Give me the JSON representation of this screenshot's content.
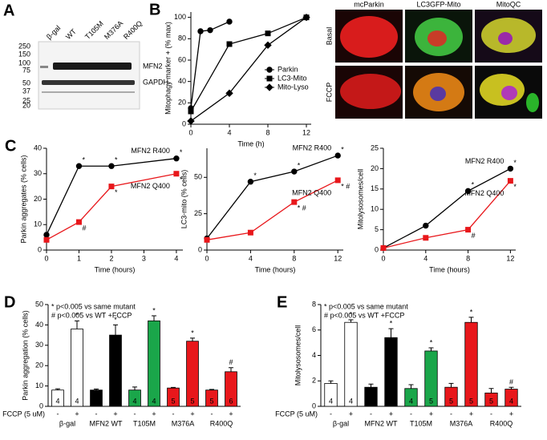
{
  "blot": {
    "panel": "A",
    "lanes": [
      "β-gal",
      "WT",
      "T105M",
      "M376A",
      "R400Q"
    ],
    "markers": [
      250,
      150,
      100,
      75,
      50,
      37,
      25,
      20
    ],
    "bands": [
      "MFN2",
      "GAPDH"
    ]
  },
  "micrographs": {
    "columns": [
      "mcParkin",
      "LC3GFP-Mito",
      "MitoQC"
    ],
    "rows": [
      "Basal",
      "FCCP"
    ]
  },
  "chart_data": [
    {
      "type": "line",
      "panel": "B",
      "xlabel": "Time (h)",
      "ylabel": "Mitophagy marker + (% max)",
      "xlim": [
        0,
        12.5
      ],
      "xticks": [
        0,
        4,
        8,
        12
      ],
      "ylim": [
        0,
        105
      ],
      "yticks": [
        0,
        20,
        40,
        60,
        80,
        100
      ],
      "legend": "right",
      "series": [
        {
          "name": "Parkin",
          "color": "#000000",
          "marker": "circle",
          "x": [
            0,
            1,
            2,
            4
          ],
          "values": [
            15,
            87,
            88,
            96
          ]
        },
        {
          "name": "LC3-Mito",
          "color": "#000000",
          "marker": "square",
          "x": [
            0,
            4,
            8,
            12
          ],
          "values": [
            12,
            75,
            85,
            100
          ]
        },
        {
          "name": "Mito-Lyso",
          "color": "#000000",
          "marker": "diamond",
          "x": [
            0,
            4,
            8,
            12
          ],
          "values": [
            3,
            29,
            74,
            100
          ]
        }
      ]
    },
    {
      "type": "line",
      "panel": "C",
      "xlabel": "Time (hours)",
      "ylabel": "Parkin aggregates (% cells)",
      "xlim": [
        0,
        4.2
      ],
      "xticks": [
        0,
        1,
        2,
        3,
        4
      ],
      "ylim": [
        0,
        40
      ],
      "yticks": [
        0,
        10,
        20,
        30,
        40
      ],
      "legend": "direct",
      "series": [
        {
          "name": "MFN2 R400",
          "color": "#000000",
          "marker": "circle",
          "x": [
            0,
            1,
            2,
            4
          ],
          "values": [
            6,
            33,
            33,
            36
          ],
          "significance": [
            null,
            "*",
            "*",
            "*"
          ]
        },
        {
          "name": "MFN2 Q400",
          "color": "#e8171b",
          "marker": "square",
          "x": [
            0,
            1,
            2,
            4
          ],
          "values": [
            4,
            11,
            25,
            30
          ],
          "significance": [
            null,
            "#",
            "*",
            "*"
          ]
        }
      ]
    },
    {
      "type": "line",
      "xlabel": "Time (hours)",
      "ylabel": "LC3-mito (% cells)",
      "xlim": [
        0,
        12.5
      ],
      "xticks": [
        0,
        4,
        8,
        12
      ],
      "ylim": [
        0,
        70
      ],
      "yticks": [
        0,
        25,
        50
      ],
      "legend": "direct",
      "series": [
        {
          "name": "MFN2 R400",
          "color": "#000000",
          "marker": "circle",
          "x": [
            0,
            4,
            8,
            12
          ],
          "values": [
            8,
            47,
            54,
            65
          ],
          "significance": [
            null,
            "*",
            "*",
            "*"
          ]
        },
        {
          "name": "MFN2 Q400",
          "color": "#e8171b",
          "marker": "square",
          "x": [
            0,
            4,
            8,
            12
          ],
          "values": [
            7,
            12,
            33,
            48
          ],
          "significance": [
            null,
            null,
            "* #",
            "* #"
          ]
        }
      ]
    },
    {
      "type": "line",
      "xlabel": "Time (hours)",
      "ylabel": "Mitolysosomes/cell",
      "xlim": [
        0,
        12.5
      ],
      "xticks": [
        0,
        4,
        8,
        12
      ],
      "ylim": [
        0,
        25
      ],
      "yticks": [
        0,
        5,
        10,
        15,
        20,
        25
      ],
      "legend": "direct",
      "series": [
        {
          "name": "MFN2 R400",
          "color": "#000000",
          "marker": "circle",
          "x": [
            0,
            4,
            8,
            12
          ],
          "values": [
            0.5,
            6,
            14.5,
            20
          ],
          "significance": [
            null,
            null,
            "*",
            "*"
          ]
        },
        {
          "name": "MFN2 Q400",
          "color": "#e8171b",
          "marker": "square",
          "x": [
            0,
            4,
            8,
            12
          ],
          "values": [
            0.5,
            3,
            5,
            17
          ],
          "significance": [
            null,
            null,
            "#",
            "*"
          ]
        }
      ]
    },
    {
      "type": "bar",
      "panel": "D",
      "ylabel": "Parkin aggregation (% cells)",
      "ylim": [
        0,
        50
      ],
      "yticks": [
        0,
        10,
        20,
        30,
        40,
        50
      ],
      "notes": [
        "* p<0.005 vs same mutant",
        "# p<0.005 vs WT +FCCP"
      ],
      "treatment": "FCCP (5 uM)",
      "groups": [
        "β-gal",
        "MFN2 WT",
        "T105M",
        "M376A",
        "R400Q"
      ],
      "categories": [
        "-",
        "+",
        "-",
        "+",
        "-",
        "+",
        "-",
        "+",
        "-",
        "+"
      ],
      "values": [
        8,
        38,
        8,
        35,
        8,
        42,
        9,
        32,
        8,
        17
      ],
      "errors": [
        0.6,
        4,
        0.5,
        5,
        1.5,
        2.5,
        0.3,
        1.5,
        0.3,
        2
      ],
      "n": [
        4,
        4,
        4,
        4,
        4,
        4,
        5,
        5,
        5,
        6
      ],
      "significance": [
        null,
        "*",
        null,
        "*",
        null,
        "*",
        null,
        "*",
        null,
        "#"
      ],
      "colors": [
        "#ffffff",
        "#ffffff",
        "#000000",
        "#000000",
        "#1aa64a",
        "#1aa64a",
        "#e8171b",
        "#e8171b",
        "#e8171b",
        "#e8171b"
      ]
    },
    {
      "type": "bar",
      "panel": "E",
      "ylabel": "Mitolysosomes/cell",
      "ylim": [
        0,
        8
      ],
      "yticks": [
        0,
        2,
        4,
        6,
        8
      ],
      "notes": [
        "* p<0.005 vs same mutant",
        "# p<0.005 vs WT +FCCP"
      ],
      "treatment": "FCCP (5 uM)",
      "groups": [
        "β-gal",
        "MFN2 WT",
        "T105M",
        "M376A",
        "R400Q"
      ],
      "categories": [
        "-",
        "+",
        "-",
        "+",
        "-",
        "+",
        "-",
        "+",
        "-",
        "+"
      ],
      "values": [
        1.8,
        6.6,
        1.5,
        5.4,
        1.4,
        4.35,
        1.5,
        6.6,
        1.05,
        1.35
      ],
      "errors": [
        0.2,
        0.2,
        0.25,
        0.7,
        0.3,
        0.25,
        0.3,
        0.4,
        0.35,
        0.15
      ],
      "n": [
        4,
        4,
        4,
        4,
        4,
        5,
        5,
        5,
        5,
        4
      ],
      "significance": [
        null,
        "*",
        null,
        "*",
        null,
        "*",
        null,
        "*",
        null,
        "#"
      ],
      "colors": [
        "#ffffff",
        "#ffffff",
        "#000000",
        "#000000",
        "#1aa64a",
        "#1aa64a",
        "#e8171b",
        "#e8171b",
        "#e8171b",
        "#e8171b"
      ]
    }
  ]
}
